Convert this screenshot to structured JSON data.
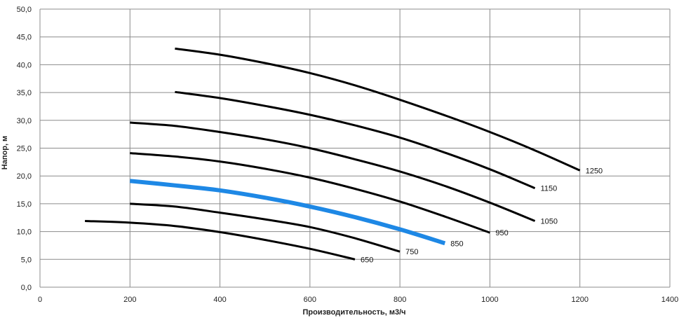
{
  "chart_data": {
    "type": "line",
    "title": "",
    "xlabel": "Производительность,  м3/ч",
    "ylabel": "Напор, м",
    "xlim": [
      0,
      1400
    ],
    "ylim": [
      0,
      50
    ],
    "x_ticks": [
      0,
      200,
      400,
      600,
      800,
      1000,
      1200,
      1400
    ],
    "y_ticks": [
      "0,0",
      "5,0",
      "10,0",
      "15,0",
      "20,0",
      "25,0",
      "30,0",
      "35,0",
      "40,0",
      "45,0",
      "50,0"
    ],
    "grid": true,
    "legend": "none",
    "series": [
      {
        "name": "650",
        "color": "#000000",
        "x": [
          100,
          200,
          300,
          400,
          500,
          600,
          700
        ],
        "y": [
          11.9,
          11.6,
          11.0,
          9.9,
          8.5,
          6.9,
          5.0
        ]
      },
      {
        "name": "750",
        "color": "#000000",
        "x": [
          200,
          300,
          400,
          500,
          600,
          700,
          800
        ],
        "y": [
          15.0,
          14.5,
          13.4,
          12.2,
          10.8,
          8.8,
          6.4
        ]
      },
      {
        "name": "850",
        "color": "#1E88E5",
        "x": [
          200,
          300,
          400,
          500,
          600,
          700,
          800,
          900
        ],
        "y": [
          19.1,
          18.3,
          17.4,
          16.1,
          14.5,
          12.6,
          10.4,
          7.9
        ]
      },
      {
        "name": "950",
        "color": "#000000",
        "x": [
          200,
          300,
          400,
          500,
          600,
          700,
          800,
          900,
          1000
        ],
        "y": [
          24.1,
          23.5,
          22.6,
          21.3,
          19.7,
          17.7,
          15.4,
          12.7,
          9.8
        ]
      },
      {
        "name": "1050",
        "color": "#000000",
        "x": [
          200,
          300,
          400,
          500,
          600,
          700,
          800,
          900,
          1000,
          1100
        ],
        "y": [
          29.6,
          29.0,
          27.9,
          26.6,
          25.0,
          23.0,
          20.8,
          18.2,
          15.2,
          11.9
        ]
      },
      {
        "name": "1150",
        "color": "#000000",
        "x": [
          300,
          400,
          500,
          600,
          700,
          800,
          900,
          1000,
          1100
        ],
        "y": [
          35.1,
          34.0,
          32.6,
          31.0,
          29.1,
          26.9,
          24.2,
          21.2,
          17.8
        ]
      },
      {
        "name": "1250",
        "color": "#000000",
        "x": [
          300,
          400,
          500,
          600,
          700,
          800,
          900,
          1000,
          1100,
          1200
        ],
        "y": [
          42.9,
          41.8,
          40.3,
          38.5,
          36.3,
          33.7,
          30.9,
          27.9,
          24.6,
          21.0
        ]
      }
    ]
  }
}
